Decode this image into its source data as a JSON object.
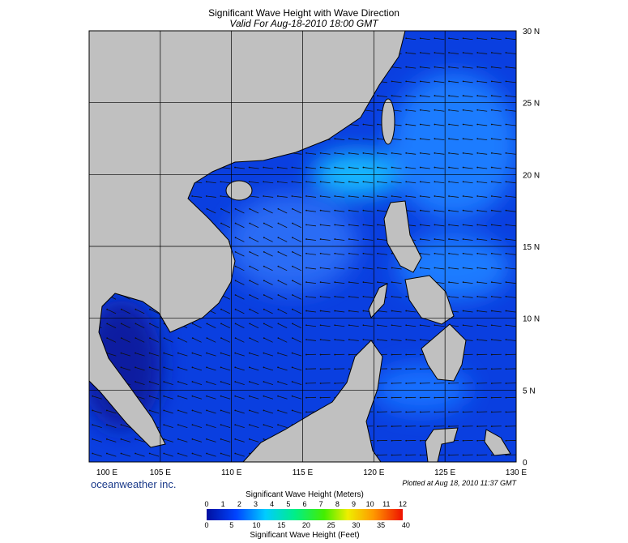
{
  "header": {
    "title": "Significant Wave Height with Wave Direction",
    "subtitle": "Valid For Aug-18-2010 18:00 GMT"
  },
  "map": {
    "lat_labels": [
      "30 N",
      "25 N",
      "20 N",
      "15 N",
      "10 N",
      "5 N",
      "0"
    ],
    "lon_labels": [
      "100 E",
      "105 E",
      "110 E",
      "115 E",
      "120 E",
      "125 E",
      "130 E"
    ],
    "brand": "oceanweather inc.",
    "plotted": "Plotted at Aug 18, 2010 11:37 GMT"
  },
  "colorbar": {
    "title_top": "Significant Wave Height (Meters)",
    "meters": [
      0,
      1,
      2,
      3,
      4,
      5,
      6,
      7,
      8,
      9,
      10,
      11,
      12
    ],
    "feet": [
      0,
      5,
      10,
      15,
      20,
      25,
      30,
      35,
      40
    ],
    "title_bottom": "Significant Wave Height (Feet)"
  }
}
